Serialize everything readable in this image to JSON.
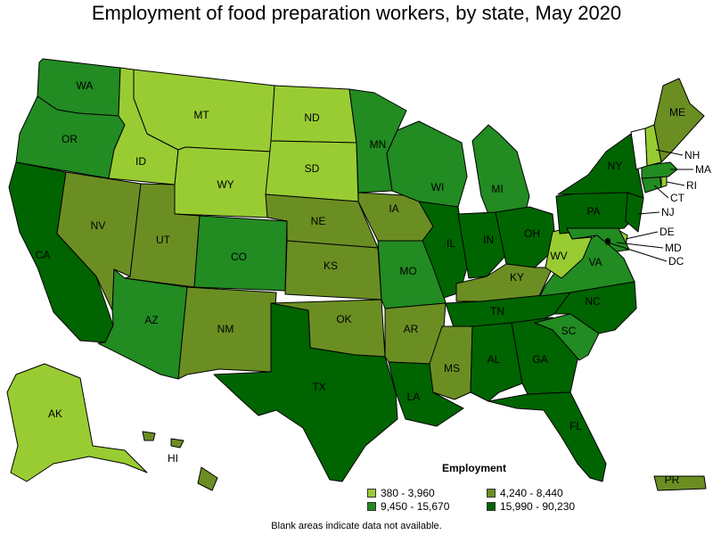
{
  "title": "Employment of food preparation workers, by state, May 2020",
  "legend": {
    "title": "Employment",
    "items": [
      {
        "label": "380 - 3,960",
        "color": "#99cc33"
      },
      {
        "label": "4,240 - 8,440",
        "color": "#6b8e23"
      },
      {
        "label": "9,450 - 15,670",
        "color": "#228b22"
      },
      {
        "label": "15,990 - 90,230",
        "color": "#006400"
      }
    ]
  },
  "note": "Blank areas indicate data not available.",
  "states": {
    "WA": "9,450 - 15,670",
    "OR": "9,450 - 15,670",
    "CA": "15,990 - 90,230",
    "NV": "4,240 - 8,440",
    "ID": "380 - 3,960",
    "MT": "380 - 3,960",
    "WY": "380 - 3,960",
    "UT": "4,240 - 8,440",
    "AZ": "9,450 - 15,670",
    "CO": "9,450 - 15,670",
    "NM": "4,240 - 8,440",
    "ND": "380 - 3,960",
    "SD": "380 - 3,960",
    "NE": "4,240 - 8,440",
    "KS": "4,240 - 8,440",
    "OK": "4,240 - 8,440",
    "TX": "15,990 - 90,230",
    "MN": "9,450 - 15,670",
    "IA": "4,240 - 8,440",
    "MO": "9,450 - 15,670",
    "AR": "4,240 - 8,440",
    "LA": "15,990 - 90,230",
    "WI": "9,450 - 15,670",
    "IL": "15,990 - 90,230",
    "MI": "9,450 - 15,670",
    "IN": "15,990 - 90,230",
    "OH": "15,990 - 90,230",
    "KY": "4,240 - 8,440",
    "TN": "15,990 - 90,230",
    "MS": "4,240 - 8,440",
    "AL": "15,990 - 90,230",
    "GA": "15,990 - 90,230",
    "FL": "15,990 - 90,230",
    "SC": "9,450 - 15,670",
    "NC": "15,990 - 90,230",
    "VA": "9,450 - 15,670",
    "WV": "380 - 3,960",
    "PA": "15,990 - 90,230",
    "NY": "15,990 - 90,230",
    "ME": "4,240 - 8,440",
    "NH": "380 - 3,960",
    "MA": "9,450 - 15,670",
    "RI": "380 - 3,960",
    "CT": "9,450 - 15,670",
    "NJ": "15,990 - 90,230",
    "DE": "380 - 3,960",
    "MD": "9,450 - 15,670",
    "DC": "15,990 - 90,230",
    "AK": "380 - 3,960",
    "HI": "4,240 - 8,440",
    "PR": "4,240 - 8,440"
  }
}
